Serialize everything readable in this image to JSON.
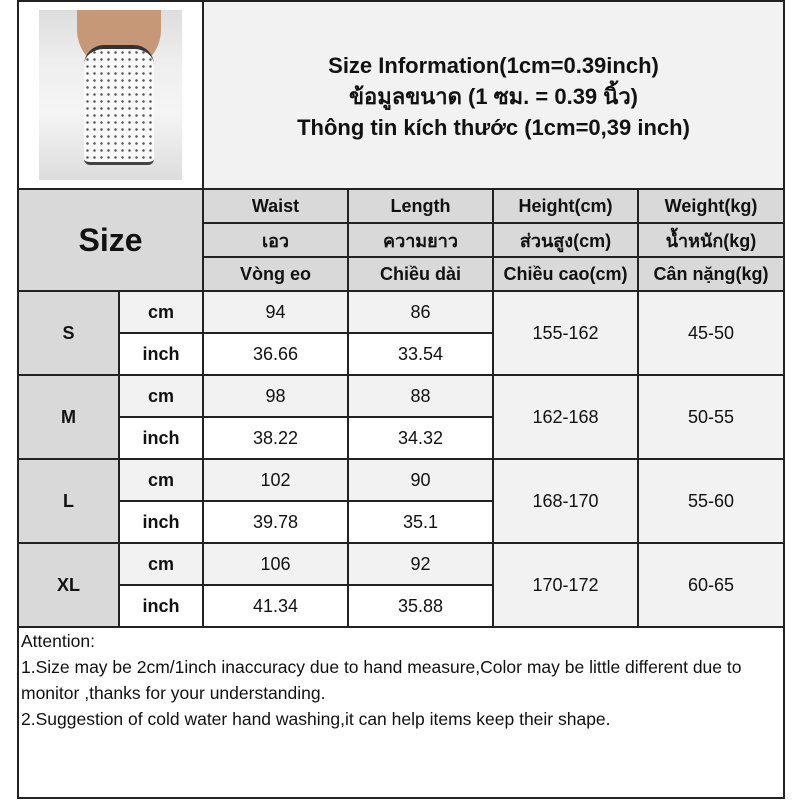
{
  "title": {
    "line1": "Size Information(1cm=0.39inch)",
    "line2": "ข้อมูลขนาด (1 ซม. = 0.39 นิ้ว)",
    "line3": "Thông tin kích thước (1cm=0,39 inch)"
  },
  "size_label": "Size",
  "headers": [
    [
      "Waist",
      "Length",
      "Height(cm)",
      "Weight(kg)"
    ],
    [
      "เอว",
      "ความยาว",
      "ส่วนสูง(cm)",
      "น้ำหนัก(kg)"
    ],
    [
      "Vòng eo",
      "Chiều dài",
      "Chiều cao(cm)",
      "Cân nặng(kg)"
    ]
  ],
  "rows": [
    {
      "size": "S",
      "cm_label": "cm",
      "inch_label": "inch",
      "waist_cm": "94",
      "length_cm": "86",
      "waist_in": "36.66",
      "length_in": "33.54",
      "height": "155-162",
      "weight": "45-50"
    },
    {
      "size": "M",
      "cm_label": "cm",
      "inch_label": "inch",
      "waist_cm": "98",
      "length_cm": "88",
      "waist_in": "38.22",
      "length_in": "34.32",
      "height": "162-168",
      "weight": "50-55"
    },
    {
      "size": "L",
      "cm_label": "cm",
      "inch_label": "inch",
      "waist_cm": "102",
      "length_cm": "90",
      "waist_in": "39.78",
      "length_in": "35.1",
      "height": "168-170",
      "weight": "55-60"
    },
    {
      "size": "XL",
      "cm_label": "cm",
      "inch_label": "inch",
      "waist_cm": "106",
      "length_cm": "92",
      "waist_in": "41.34",
      "length_in": "35.88",
      "height": "170-172",
      "weight": "60-65"
    }
  ],
  "attention": {
    "heading": "Attention:",
    "note1": "1.Size may be 2cm/1inch inaccuracy due to hand measure,Color may be little different due to monitor ,thanks for your understanding.",
    "note2": "2.Suggestion of cold water hand washing,it can help items keep their shape."
  },
  "colors": {
    "header_gray": "#d9d9d9",
    "light_gray": "#f2f2f2",
    "border": "#222222"
  }
}
